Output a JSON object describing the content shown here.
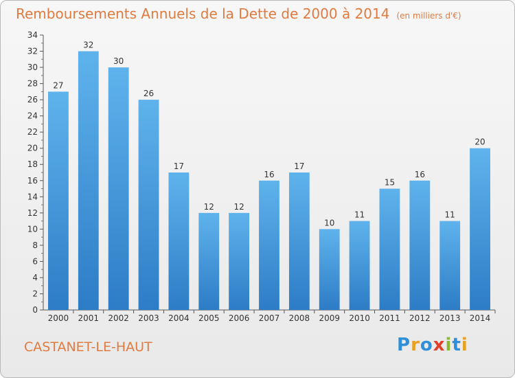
{
  "title": {
    "main": "Remboursements Annuels de la Dette de 2000 à 2014",
    "unit": "(en milliers d'€)"
  },
  "town": "CASTANET-LE-HAUT",
  "logo": {
    "text": "Proxiti",
    "letters": [
      {
        "ch": "P",
        "color": "#2f8fd8"
      },
      {
        "ch": "r",
        "color": "#e8a020"
      },
      {
        "ch": "o",
        "color": "#2f8fd8"
      },
      {
        "ch": "x",
        "color": "#e0402a"
      },
      {
        "ch": "i",
        "color": "#8ab832"
      },
      {
        "ch": "t",
        "color": "#2f8fd8"
      },
      {
        "ch": "i",
        "color": "#e8a020"
      }
    ]
  },
  "colors": {
    "bar_top": "#5fb3ec",
    "bar_bottom": "#2d7cc6",
    "title": "#e07a3f"
  },
  "chart_data": {
    "type": "bar",
    "title": "Remboursements Annuels de la Dette de 2000 à 2014",
    "xlabel": "",
    "ylabel": "",
    "ylim": [
      0,
      34
    ],
    "yticks": [
      0,
      2,
      4,
      6,
      8,
      10,
      12,
      14,
      16,
      18,
      20,
      22,
      24,
      26,
      28,
      30,
      32,
      34
    ],
    "grid": false,
    "categories": [
      "2000",
      "2001",
      "2002",
      "2003",
      "2004",
      "2005",
      "2006",
      "2007",
      "2008",
      "2009",
      "2010",
      "2011",
      "2012",
      "2013",
      "2014"
    ],
    "values": [
      27,
      32,
      30,
      26,
      17,
      12,
      12,
      16,
      17,
      10,
      11,
      15,
      16,
      11,
      20
    ],
    "value_labels": [
      "27",
      "32",
      "30",
      "26",
      "17",
      "12",
      "12",
      "16",
      "17",
      "10",
      "11",
      "15",
      "16",
      "11",
      "20"
    ]
  }
}
